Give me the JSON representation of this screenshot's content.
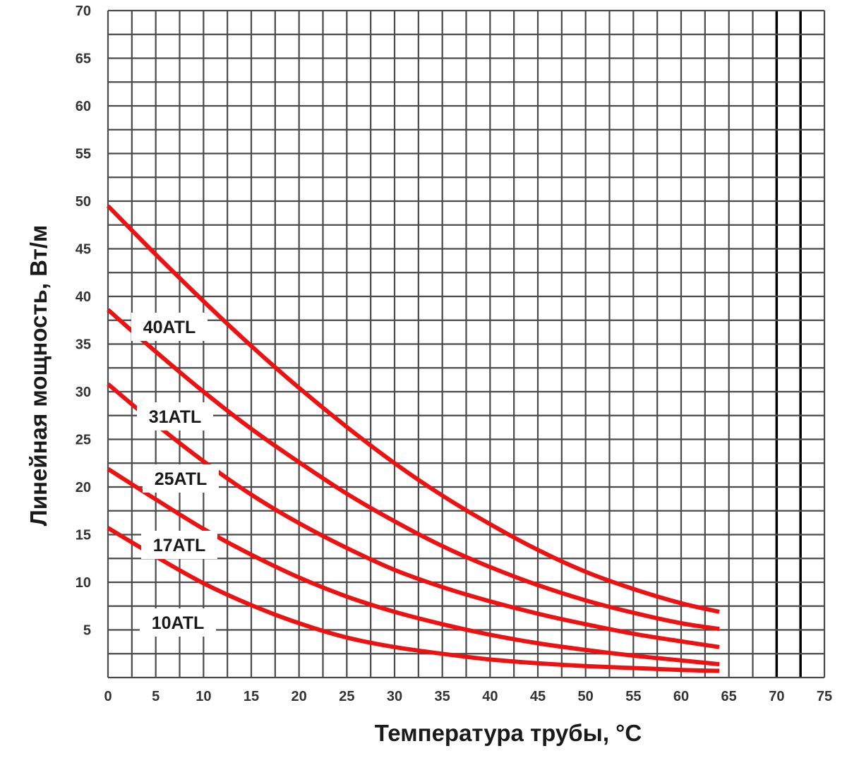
{
  "chart_data": {
    "type": "line",
    "title": "",
    "xlabel": "Температура трубы, °C",
    "ylabel": "Линейная мощность, Вт/м",
    "xlim": [
      0,
      75
    ],
    "ylim": [
      0,
      70
    ],
    "x_ticks": [
      "0",
      "5",
      "10",
      "15",
      "20",
      "25",
      "30",
      "35",
      "40",
      "45",
      "50",
      "55",
      "60",
      "65",
      "70",
      "75"
    ],
    "y_ticks": [
      "5",
      "10",
      "15",
      "20",
      "25",
      "30",
      "35",
      "40",
      "45",
      "50",
      "55",
      "60",
      "65",
      "70"
    ],
    "grid": true,
    "grid_step_x": 2.5,
    "grid_step_y": 2.5,
    "emphasized_vertical_lines": [
      70,
      72.5
    ],
    "line_color": "#ee1111",
    "grid_color": "#4a4a4a",
    "series": [
      {
        "name": "40ATL",
        "x": [
          0,
          5,
          10,
          15,
          20,
          25,
          30,
          35,
          40,
          45,
          50,
          55,
          60,
          64
        ],
        "y": [
          49.5,
          44.4,
          39.5,
          34.8,
          30.4,
          26.3,
          22.5,
          19.1,
          16.1,
          13.4,
          11.1,
          9.3,
          7.8,
          6.9
        ]
      },
      {
        "name": "31ATL",
        "x": [
          0,
          5,
          10,
          15,
          20,
          25,
          30,
          35,
          40,
          45,
          50,
          55,
          60,
          64
        ],
        "y": [
          38.6,
          34.2,
          30.0,
          26.1,
          22.6,
          19.3,
          16.4,
          13.8,
          11.6,
          9.7,
          8.1,
          6.8,
          5.7,
          5.1
        ]
      },
      {
        "name": "25ATL",
        "x": [
          0,
          5,
          10,
          15,
          20,
          25,
          30,
          35,
          40,
          45,
          50,
          55,
          60,
          64
        ],
        "y": [
          30.8,
          26.6,
          22.7,
          19.2,
          16.2,
          13.6,
          11.3,
          9.5,
          8.0,
          6.7,
          5.6,
          4.6,
          3.8,
          3.2
        ]
      },
      {
        "name": "17ATL",
        "x": [
          0,
          5,
          10,
          15,
          20,
          25,
          30,
          35,
          40,
          45,
          50,
          55,
          60,
          64
        ],
        "y": [
          21.9,
          18.7,
          15.6,
          12.9,
          10.5,
          8.5,
          6.9,
          5.6,
          4.5,
          3.6,
          2.9,
          2.3,
          1.8,
          1.4
        ]
      },
      {
        "name": "10ATL",
        "x": [
          0,
          5,
          10,
          15,
          20,
          25,
          30,
          35,
          40,
          45,
          50,
          55,
          60,
          64
        ],
        "y": [
          15.7,
          12.7,
          9.9,
          7.6,
          5.7,
          4.2,
          3.2,
          2.5,
          1.9,
          1.5,
          1.2,
          1.0,
          0.8,
          0.7
        ]
      }
    ]
  }
}
